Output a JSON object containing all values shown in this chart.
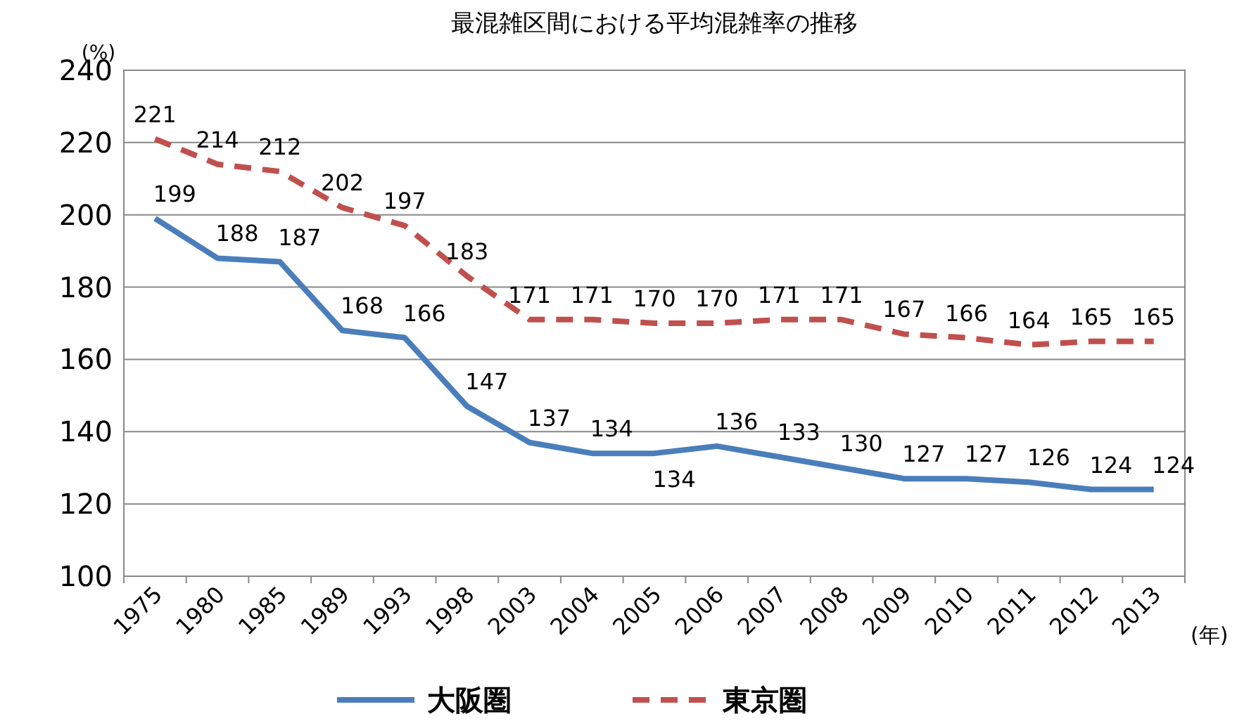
{
  "chart_data": {
    "type": "line",
    "title": "最混雑区間における平均混雑率の推移",
    "ylabel": "(%)",
    "xlabel": "(年)",
    "categories": [
      "1975",
      "1980",
      "1985",
      "1989",
      "1993",
      "1998",
      "2003",
      "2004",
      "2005",
      "2006",
      "2007",
      "2008",
      "2009",
      "2010",
      "2011",
      "2012",
      "2013"
    ],
    "series": [
      {
        "name": "大阪圏",
        "color": "#4a7ebb",
        "line_style": "solid",
        "values": [
          199,
          188,
          187,
          168,
          166,
          147,
          137,
          134,
          134,
          136,
          133,
          130,
          127,
          127,
          126,
          124,
          124
        ]
      },
      {
        "name": "東京圏",
        "color": "#c0504d",
        "line_style": "dashed",
        "values": [
          221,
          214,
          212,
          202,
          197,
          183,
          171,
          171,
          170,
          170,
          171,
          171,
          167,
          166,
          164,
          165,
          165
        ]
      }
    ],
    "ylim": [
      100,
      240
    ],
    "yticks": [
      100,
      120,
      140,
      160,
      180,
      200,
      220,
      240
    ],
    "grid": "y",
    "legend": "bottom",
    "data_labels": true,
    "marker": "none"
  }
}
